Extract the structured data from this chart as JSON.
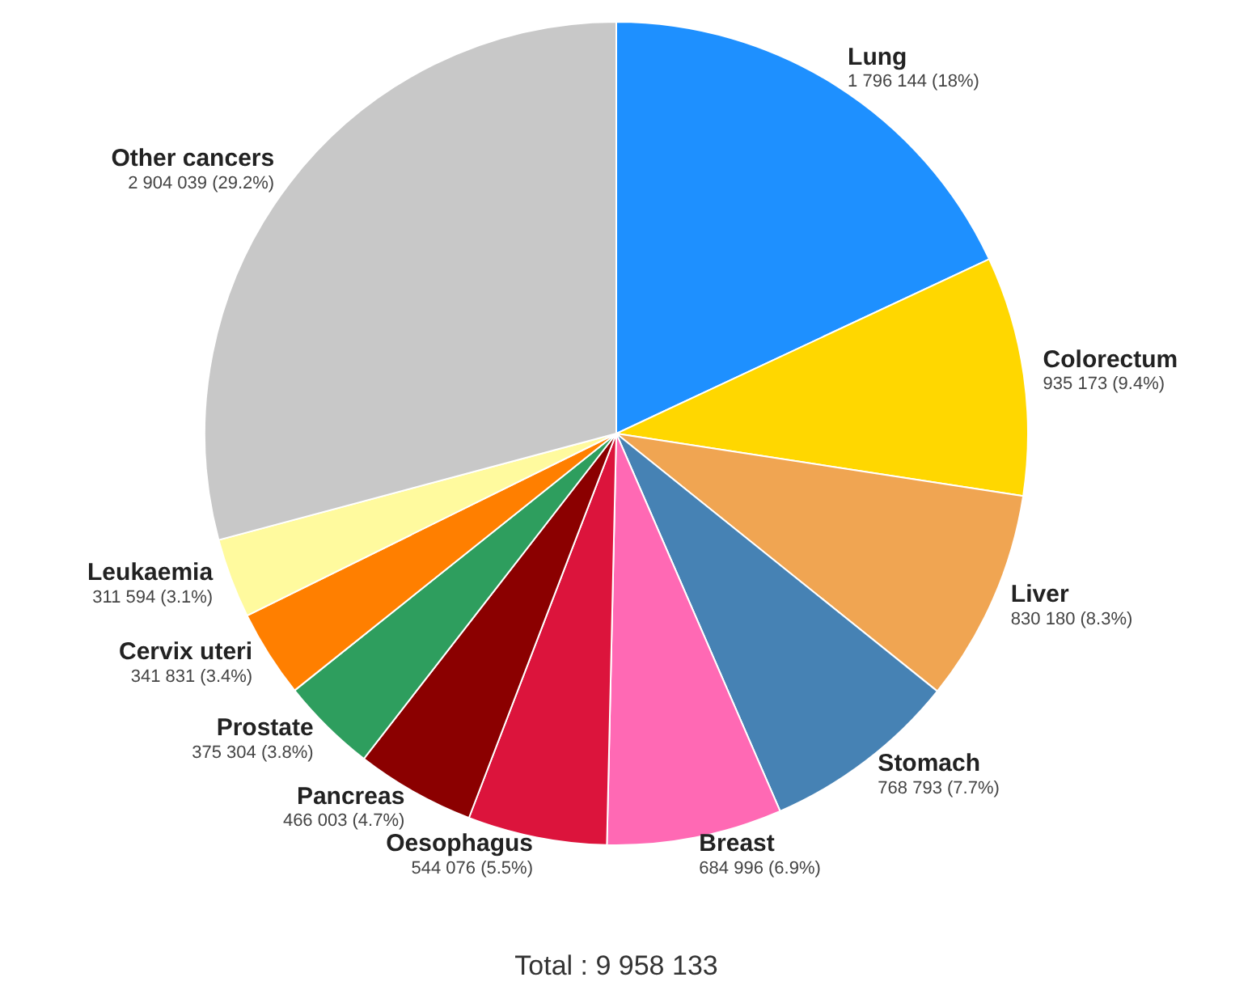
{
  "chart_data": {
    "type": "pie",
    "categories": [
      "Lung",
      "Colorectum",
      "Liver",
      "Stomach",
      "Breast",
      "Oesophagus",
      "Pancreas",
      "Prostate",
      "Cervix uteri",
      "Leukaemia",
      "Other cancers"
    ],
    "values": [
      1796144,
      935173,
      830180,
      768793,
      684996,
      544076,
      466003,
      375304,
      341831,
      311594,
      2904039
    ],
    "value_labels": [
      "1 796 144 (18%)",
      "935 173 (9.4%)",
      "830 180 (8.3%)",
      "768 793 (7.7%)",
      "684 996 (6.9%)",
      "544 076 (5.5%)",
      "466 003 (4.7%)",
      "375 304 (3.8%)",
      "341 831 (3.4%)",
      "311 594 (3.1%)",
      "2 904 039 (29.2%)"
    ],
    "colors": [
      "#1e90ff",
      "#ffd700",
      "#f0a552",
      "#4682b4",
      "#ff69b4",
      "#dc143c",
      "#8b0000",
      "#2e9e5e",
      "#ff7f00",
      "#fffa9e",
      "#c8c8c8"
    ],
    "legend": false,
    "annotations": [
      "Total : 9 958 133"
    ]
  }
}
